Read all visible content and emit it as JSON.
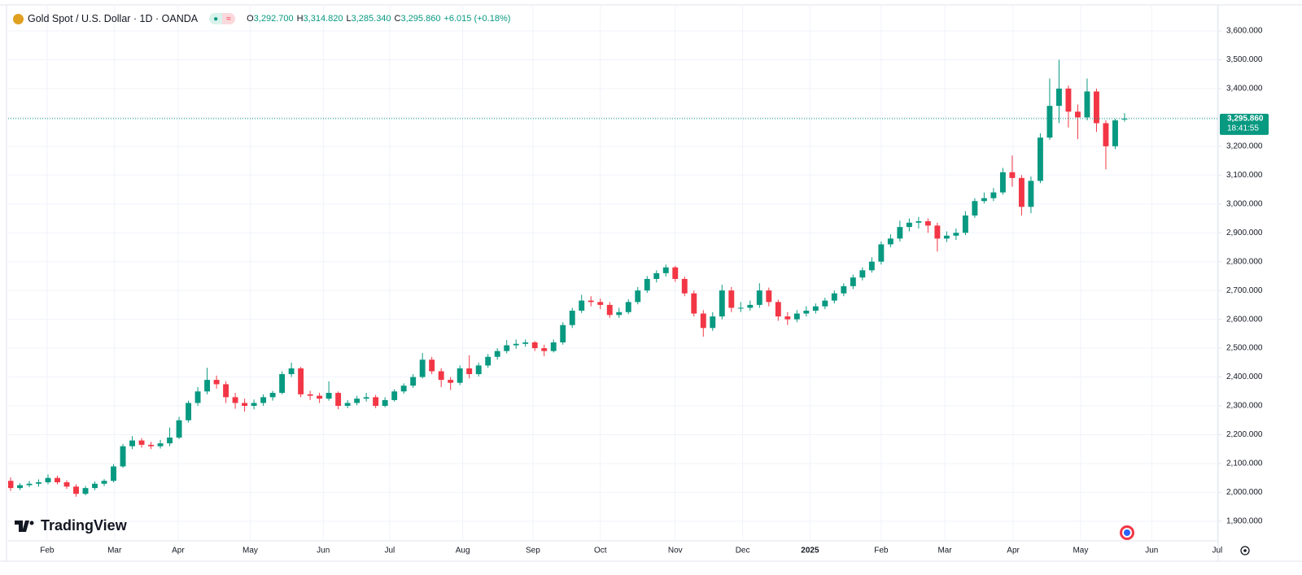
{
  "chart_data": {
    "type": "candlestick",
    "title": "Gold Spot / U.S. Dollar · 1D · OANDA",
    "legend_items": [
      {
        "key": "O",
        "value": "3,292.700"
      },
      {
        "key": "H",
        "value": "3,314.820"
      },
      {
        "key": "L",
        "value": "3,285.340"
      },
      {
        "key": "C",
        "value": "3,295.860"
      }
    ],
    "change": "+6.015 (+0.18%)",
    "last_price": {
      "value": 3295.86,
      "label": "3,295.860"
    },
    "countdown": "18:41:55",
    "watermark": "TradingView",
    "up_color": "#089981",
    "down_color": "#f23645",
    "grid": true,
    "ylim": [
      1832,
      3693
    ],
    "yticks": [
      {
        "value": 1900,
        "label": "1,900.000"
      },
      {
        "value": 2000,
        "label": "2,000.000"
      },
      {
        "value": 2100,
        "label": "2,100.000"
      },
      {
        "value": 2200,
        "label": "2,200.000"
      },
      {
        "value": 2300,
        "label": "2,300.000"
      },
      {
        "value": 2400,
        "label": "2,400.000"
      },
      {
        "value": 2500,
        "label": "2,500.000"
      },
      {
        "value": 2600,
        "label": "2,600.000"
      },
      {
        "value": 2700,
        "label": "2,700.000"
      },
      {
        "value": 2800,
        "label": "2,800.000"
      },
      {
        "value": 2900,
        "label": "2,900.000"
      },
      {
        "value": 3000,
        "label": "3,000.000"
      },
      {
        "value": 3100,
        "label": "3,100.000"
      },
      {
        "value": 3200,
        "label": "3,200.000"
      },
      {
        "value": 3300,
        "label": "3,300.000"
      },
      {
        "value": 3400,
        "label": "3,400.000"
      },
      {
        "value": 3500,
        "label": "3,500.000"
      },
      {
        "value": 3600,
        "label": "3,600.000"
      }
    ],
    "xlim": [
      -0.26,
      129
    ],
    "xticks": [
      {
        "value": 3.9,
        "label": "Feb"
      },
      {
        "value": 11.1,
        "label": "Mar"
      },
      {
        "value": 17.9,
        "label": "Apr"
      },
      {
        "value": 25.6,
        "label": "May"
      },
      {
        "value": 33.4,
        "label": "Jun"
      },
      {
        "value": 40.5,
        "label": "Jul"
      },
      {
        "value": 48.3,
        "label": "Aug"
      },
      {
        "value": 55.8,
        "label": "Sep"
      },
      {
        "value": 63.0,
        "label": "Oct"
      },
      {
        "value": 71.0,
        "label": "Nov"
      },
      {
        "value": 78.2,
        "label": "Dec"
      },
      {
        "value": 85.4,
        "label": "2025"
      },
      {
        "value": 93.0,
        "label": "Feb"
      },
      {
        "value": 99.8,
        "label": "Mar"
      },
      {
        "value": 107.1,
        "label": "Apr"
      },
      {
        "value": 114.3,
        "label": "May"
      },
      {
        "value": 121.9,
        "label": "Jun"
      },
      {
        "value": 128.9,
        "label": "Jul"
      }
    ],
    "ohlc": [
      [
        2040,
        2052,
        2005,
        2015
      ],
      [
        2015,
        2032,
        2008,
        2025
      ],
      [
        2025,
        2040,
        2018,
        2030
      ],
      [
        2030,
        2045,
        2020,
        2035
      ],
      [
        2035,
        2062,
        2028,
        2050
      ],
      [
        2050,
        2058,
        2028,
        2035
      ],
      [
        2035,
        2042,
        2012,
        2020
      ],
      [
        2020,
        2028,
        1985,
        1995
      ],
      [
        1995,
        2022,
        1990,
        2015
      ],
      [
        2015,
        2038,
        2008,
        2030
      ],
      [
        2030,
        2046,
        2022,
        2040
      ],
      [
        2040,
        2098,
        2035,
        2090
      ],
      [
        2090,
        2168,
        2085,
        2160
      ],
      [
        2160,
        2195,
        2150,
        2180
      ],
      [
        2180,
        2188,
        2155,
        2165
      ],
      [
        2165,
        2175,
        2150,
        2160
      ],
      [
        2160,
        2182,
        2152,
        2170
      ],
      [
        2170,
        2225,
        2160,
        2190
      ],
      [
        2190,
        2262,
        2185,
        2250
      ],
      [
        2250,
        2318,
        2242,
        2310
      ],
      [
        2310,
        2365,
        2300,
        2350
      ],
      [
        2350,
        2432,
        2340,
        2390
      ],
      [
        2390,
        2405,
        2360,
        2375
      ],
      [
        2375,
        2385,
        2310,
        2330
      ],
      [
        2330,
        2345,
        2290,
        2310
      ],
      [
        2310,
        2325,
        2280,
        2300
      ],
      [
        2300,
        2322,
        2288,
        2310
      ],
      [
        2310,
        2340,
        2300,
        2330
      ],
      [
        2330,
        2352,
        2318,
        2345
      ],
      [
        2345,
        2420,
        2340,
        2410
      ],
      [
        2410,
        2450,
        2400,
        2430
      ],
      [
        2430,
        2435,
        2330,
        2340
      ],
      [
        2340,
        2352,
        2320,
        2335
      ],
      [
        2335,
        2345,
        2310,
        2325
      ],
      [
        2325,
        2385,
        2318,
        2345
      ],
      [
        2345,
        2350,
        2288,
        2300
      ],
      [
        2300,
        2320,
        2292,
        2310
      ],
      [
        2310,
        2335,
        2302,
        2325
      ],
      [
        2325,
        2345,
        2315,
        2330
      ],
      [
        2330,
        2338,
        2292,
        2300
      ],
      [
        2300,
        2330,
        2295,
        2320
      ],
      [
        2320,
        2358,
        2315,
        2350
      ],
      [
        2350,
        2378,
        2342,
        2370
      ],
      [
        2370,
        2410,
        2362,
        2400
      ],
      [
        2400,
        2483,
        2395,
        2460
      ],
      [
        2460,
        2470,
        2410,
        2420
      ],
      [
        2420,
        2430,
        2365,
        2390
      ],
      [
        2390,
        2400,
        2355,
        2380
      ],
      [
        2380,
        2440,
        2372,
        2430
      ],
      [
        2430,
        2475,
        2395,
        2410
      ],
      [
        2410,
        2450,
        2402,
        2440
      ],
      [
        2440,
        2480,
        2432,
        2470
      ],
      [
        2470,
        2500,
        2460,
        2490
      ],
      [
        2490,
        2528,
        2482,
        2510
      ],
      [
        2510,
        2530,
        2498,
        2515
      ],
      [
        2515,
        2530,
        2505,
        2520
      ],
      [
        2520,
        2525,
        2490,
        2500
      ],
      [
        2500,
        2512,
        2472,
        2490
      ],
      [
        2490,
        2530,
        2485,
        2520
      ],
      [
        2520,
        2590,
        2512,
        2580
      ],
      [
        2580,
        2640,
        2570,
        2630
      ],
      [
        2630,
        2685,
        2622,
        2665
      ],
      [
        2665,
        2680,
        2645,
        2660
      ],
      [
        2660,
        2672,
        2635,
        2650
      ],
      [
        2650,
        2660,
        2605,
        2615
      ],
      [
        2615,
        2640,
        2605,
        2625
      ],
      [
        2625,
        2670,
        2618,
        2660
      ],
      [
        2660,
        2712,
        2652,
        2700
      ],
      [
        2700,
        2750,
        2692,
        2740
      ],
      [
        2740,
        2770,
        2728,
        2760
      ],
      [
        2760,
        2790,
        2748,
        2780
      ],
      [
        2780,
        2785,
        2730,
        2740
      ],
      [
        2740,
        2748,
        2680,
        2690
      ],
      [
        2690,
        2700,
        2610,
        2620
      ],
      [
        2620,
        2632,
        2540,
        2570
      ],
      [
        2570,
        2625,
        2560,
        2610
      ],
      [
        2610,
        2720,
        2600,
        2700
      ],
      [
        2700,
        2712,
        2625,
        2640
      ],
      [
        2640,
        2660,
        2625,
        2640
      ],
      [
        2640,
        2665,
        2630,
        2650
      ],
      [
        2650,
        2725,
        2640,
        2700
      ],
      [
        2700,
        2710,
        2645,
        2660
      ],
      [
        2660,
        2668,
        2595,
        2610
      ],
      [
        2610,
        2625,
        2580,
        2600
      ],
      [
        2600,
        2632,
        2590,
        2620
      ],
      [
        2620,
        2645,
        2610,
        2630
      ],
      [
        2630,
        2655,
        2620,
        2645
      ],
      [
        2645,
        2675,
        2635,
        2665
      ],
      [
        2665,
        2700,
        2655,
        2690
      ],
      [
        2690,
        2725,
        2680,
        2715
      ],
      [
        2715,
        2755,
        2705,
        2745
      ],
      [
        2745,
        2780,
        2735,
        2770
      ],
      [
        2770,
        2815,
        2762,
        2800
      ],
      [
        2800,
        2870,
        2790,
        2860
      ],
      [
        2860,
        2895,
        2850,
        2880
      ],
      [
        2880,
        2942,
        2870,
        2920
      ],
      [
        2920,
        2950,
        2905,
        2935
      ],
      [
        2935,
        2955,
        2915,
        2940
      ],
      [
        2940,
        2950,
        2900,
        2925
      ],
      [
        2925,
        2935,
        2835,
        2880
      ],
      [
        2880,
        2905,
        2868,
        2890
      ],
      [
        2890,
        2915,
        2875,
        2900
      ],
      [
        2900,
        2975,
        2892,
        2960
      ],
      [
        2960,
        3020,
        2952,
        3010
      ],
      [
        3010,
        3040,
        3002,
        3020
      ],
      [
        3020,
        3055,
        3010,
        3040
      ],
      [
        3040,
        3125,
        3032,
        3110
      ],
      [
        3110,
        3168,
        3060,
        3090
      ],
      [
        3090,
        3100,
        2960,
        2990
      ],
      [
        2990,
        3095,
        2968,
        3080
      ],
      [
        3080,
        3245,
        3072,
        3230
      ],
      [
        3230,
        3435,
        3222,
        3340
      ],
      [
        3340,
        3500,
        3280,
        3400
      ],
      [
        3400,
        3410,
        3265,
        3320
      ],
      [
        3320,
        3345,
        3225,
        3300
      ],
      [
        3300,
        3435,
        3290,
        3390
      ],
      [
        3390,
        3400,
        3250,
        3280
      ],
      [
        3280,
        3290,
        3120,
        3200
      ],
      [
        3200,
        3295,
        3190,
        3289.845
      ],
      [
        3292.7,
        3314.82,
        3285.34,
        3295.86
      ]
    ]
  }
}
